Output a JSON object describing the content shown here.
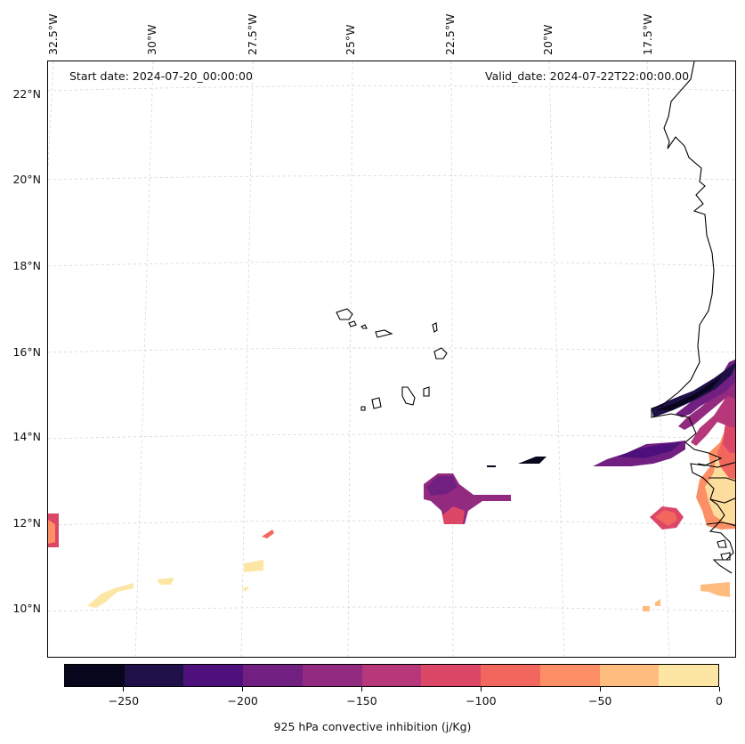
{
  "map": {
    "start_date": "Start date: 2024-07-20_00:00:00",
    "valid_date": "Valid_date: 2024-07-22T22:00:00.00",
    "lon_labels": [
      "32.5°W",
      "30°W",
      "27.5°W",
      "25°W",
      "22.5°W",
      "20°W",
      "17.5°W"
    ],
    "lat_labels": [
      "22°N",
      "20°N",
      "18°N",
      "16°N",
      "14°N",
      "12°N",
      "10°N"
    ],
    "variable": "925 hPa convective inhibition"
  },
  "colorbar": {
    "label": "925 hPa convective inhibition (j/Kg)",
    "range": [
      -275,
      0
    ],
    "level_step": 25,
    "colors": [
      "#07061c",
      "#1f1147",
      "#4e117c",
      "#711f81",
      "#922a80",
      "#b6377a",
      "#dc4767",
      "#f2675d",
      "#fc8f65",
      "#febc7e",
      "#fde6a3"
    ],
    "tick_values": [
      -250,
      -200,
      -150,
      -100,
      -50,
      0
    ],
    "tick_labels": [
      "−250",
      "−200",
      "−150",
      "−100",
      "−50",
      "0"
    ]
  },
  "icons": {
    "coastline": "coastline-outline",
    "gridlines": "graticule-dashed"
  }
}
